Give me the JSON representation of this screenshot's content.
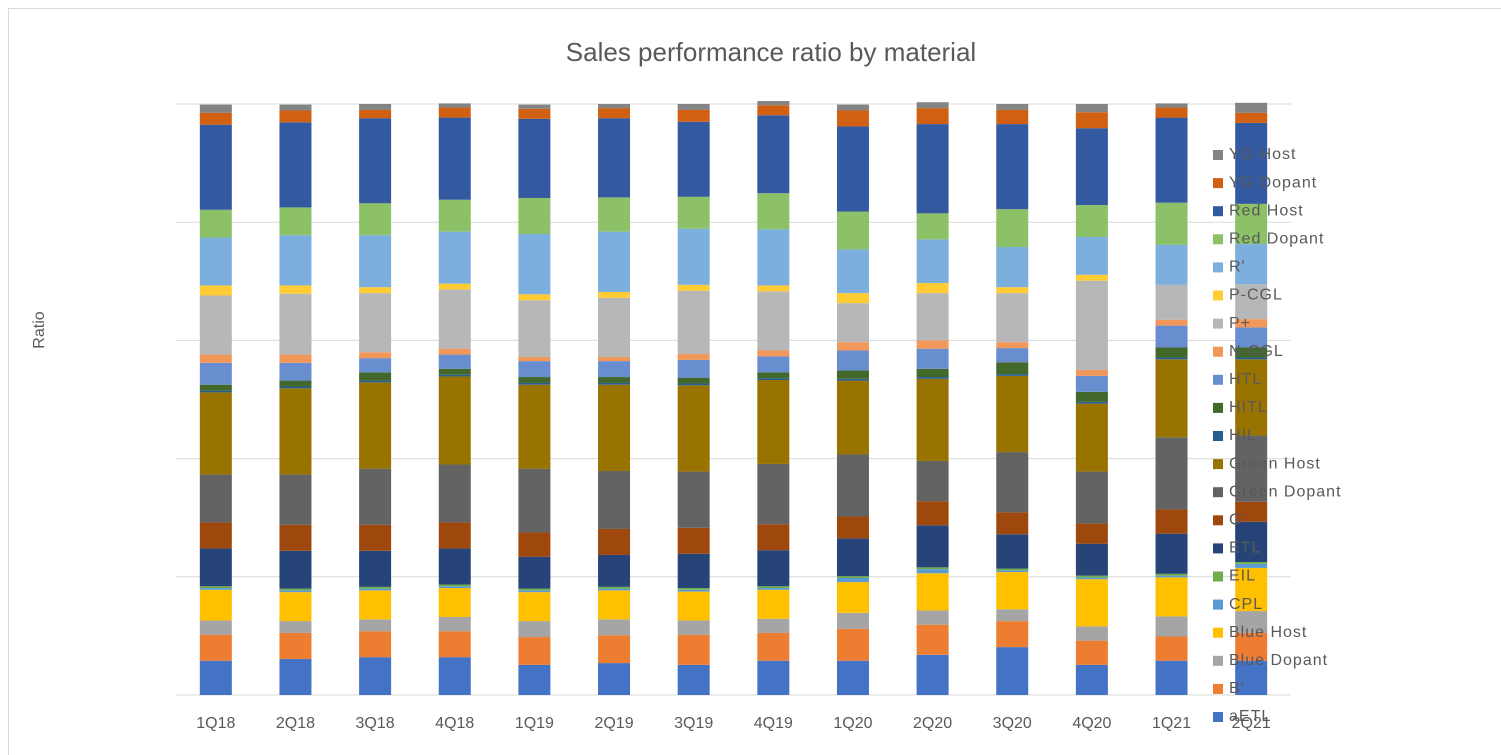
{
  "chart_data": {
    "type": "stacked_bar",
    "title": "Sales performance ratio by material",
    "y_label": "Ratio",
    "categories": [
      "1Q18",
      "2Q18",
      "3Q18",
      "4Q18",
      "1Q19",
      "2Q19",
      "3Q19",
      "4Q19",
      "1Q20",
      "2Q20",
      "3Q20",
      "4Q20",
      "1Q21",
      "2Q21"
    ],
    "ylim": [
      0,
      100
    ],
    "yticks": [
      0,
      20,
      40,
      60,
      80,
      100
    ],
    "grid": true,
    "legend": "right",
    "series": [
      {
        "name": "aETL",
        "color": "#4472c4",
        "values": [
          5.8,
          6.1,
          6.4,
          6.4,
          5.1,
          5.4,
          5.1,
          5.8,
          5.8,
          6.8,
          8.1,
          5.1,
          5.8,
          5.8
        ]
      },
      {
        "name": "B'",
        "color": "#ed7d31",
        "values": [
          4.4,
          4.4,
          4.4,
          4.4,
          4.7,
          4.7,
          5.1,
          4.7,
          5.4,
          5.1,
          4.4,
          4.1,
          4.1,
          4.7
        ]
      },
      {
        "name": "Blue Dopant",
        "color": "#a5a5a5",
        "values": [
          2.4,
          2.0,
          2.0,
          2.4,
          2.7,
          2.7,
          2.4,
          2.4,
          2.7,
          2.4,
          2.0,
          2.4,
          3.4,
          3.7
        ]
      },
      {
        "name": "Blue Host",
        "color": "#ffc000",
        "values": [
          5.2,
          4.9,
          4.9,
          4.9,
          4.9,
          4.9,
          4.9,
          4.9,
          5.2,
          6.3,
          6.3,
          8.0,
          6.6,
          7.3
        ]
      },
      {
        "name": "CPL",
        "color": "#5b9bd5",
        "values": [
          0.3,
          0.3,
          0.3,
          0.3,
          0.3,
          0.3,
          0.3,
          0.3,
          0.7,
          0.7,
          0.3,
          0.3,
          0.3,
          0.7
        ]
      },
      {
        "name": "EIL",
        "color": "#70ad47",
        "values": [
          0.3,
          0.3,
          0.3,
          0.3,
          0.3,
          0.3,
          0.3,
          0.3,
          0.3,
          0.3,
          0.3,
          0.3,
          0.3,
          0.3
        ]
      },
      {
        "name": "ETL",
        "color": "#264478",
        "values": [
          6.4,
          6.4,
          6.1,
          6.1,
          5.4,
          5.4,
          5.8,
          6.1,
          6.4,
          7.1,
          5.8,
          5.4,
          6.8,
          6.8
        ]
      },
      {
        "name": "G'",
        "color": "#9e480e",
        "values": [
          4.4,
          4.4,
          4.4,
          4.4,
          4.1,
          4.4,
          4.4,
          4.4,
          3.7,
          4.1,
          3.7,
          3.4,
          4.1,
          3.4
        ]
      },
      {
        "name": "Green Dopant",
        "color": "#636363",
        "values": [
          8.1,
          8.5,
          9.5,
          9.8,
          10.8,
          9.8,
          9.5,
          10.2,
          10.5,
          6.8,
          10.2,
          8.8,
          12.2,
          11.2
        ]
      },
      {
        "name": "Green Host",
        "color": "#997300",
        "values": [
          13.9,
          14.6,
          14.6,
          14.9,
          14.2,
          14.6,
          14.6,
          14.2,
          12.5,
          13.9,
          12.9,
          11.5,
          13.2,
          12.9
        ]
      },
      {
        "name": "HIL",
        "color": "#255e91",
        "values": [
          0.3,
          0.3,
          0.3,
          0.3,
          0.3,
          0.3,
          0.3,
          0.3,
          0.3,
          0.3,
          0.3,
          0.3,
          0.3,
          0.3
        ]
      },
      {
        "name": "HITL",
        "color": "#43682b",
        "values": [
          1.0,
          1.0,
          1.4,
          1.0,
          1.0,
          1.0,
          1.0,
          1.0,
          1.4,
          1.4,
          2.0,
          1.7,
          1.7,
          1.7
        ]
      },
      {
        "name": "HTL",
        "color": "#698ed0",
        "values": [
          3.7,
          3.0,
          2.4,
          2.4,
          2.7,
          2.7,
          3.0,
          2.7,
          3.4,
          3.4,
          2.4,
          2.7,
          3.7,
          3.4
        ]
      },
      {
        "name": "N-CGL",
        "color": "#f1975a",
        "values": [
          1.4,
          1.4,
          1.0,
          1.0,
          0.7,
          0.7,
          1.0,
          1.0,
          1.4,
          1.4,
          1.0,
          1.0,
          1.0,
          1.4
        ]
      },
      {
        "name": "P+",
        "color": "#b7b7b7",
        "values": [
          10.0,
          10.3,
          10.0,
          10.0,
          9.6,
          10.0,
          10.7,
          10.0,
          6.6,
          8.0,
          8.3,
          15.1,
          5.9,
          5.9
        ]
      },
      {
        "name": "P-CGL",
        "color": "#ffcd33",
        "values": [
          1.7,
          1.4,
          1.0,
          1.0,
          1.0,
          1.0,
          1.0,
          1.0,
          1.7,
          1.7,
          1.0,
          1.0,
          0,
          0
        ]
      },
      {
        "name": "R'",
        "color": "#7cafdd",
        "values": [
          8.1,
          8.5,
          8.8,
          8.8,
          10.2,
          10.2,
          9.5,
          9.5,
          7.4,
          7.4,
          6.8,
          6.4,
          6.8,
          6.8
        ]
      },
      {
        "name": "Red Dopant",
        "color": "#8cc168",
        "values": [
          4.7,
          4.7,
          5.4,
          5.4,
          6.1,
          5.8,
          5.4,
          6.1,
          6.4,
          4.4,
          6.4,
          5.4,
          7.1,
          6.8
        ]
      },
      {
        "name": "Red Host",
        "color": "#335aa1",
        "values": [
          14.4,
          14.4,
          14.4,
          13.9,
          13.4,
          13.4,
          12.7,
          13.2,
          14.4,
          15.1,
          14.4,
          13.0,
          14.4,
          13.7
        ]
      },
      {
        "name": "YG Dopant",
        "color": "#d26012",
        "values": [
          2.0,
          2.0,
          1.4,
          1.7,
          1.7,
          1.7,
          2.0,
          1.7,
          2.7,
          2.7,
          2.4,
          2.7,
          1.7,
          1.7
        ]
      },
      {
        "name": "YG Host",
        "color": "#848484",
        "values": [
          1.4,
          1.0,
          1.0,
          0.7,
          0.7,
          0.7,
          1.0,
          0.7,
          1.0,
          1.0,
          1.0,
          1.4,
          0.7,
          1.7
        ]
      }
    ]
  }
}
